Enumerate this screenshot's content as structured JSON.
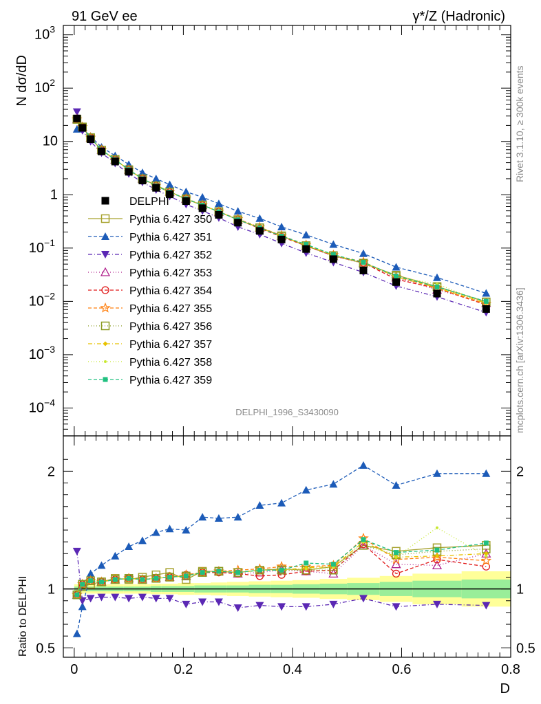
{
  "header": {
    "left": "91 GeV ee",
    "right": "γ*/Z (Hadronic)"
  },
  "side_labels": {
    "rivet": "Rivet 3.1.10, ≥ 300k events",
    "mcplots": "mcplots.cern.ch [arXiv:1306.3436]"
  },
  "watermark": "DELPHI_1996_S3430090",
  "colors": {
    "data": "#000000",
    "ref_band_inner": "#99ee99",
    "ref_band_outer": "#ffff99"
  },
  "chart_data": [
    {
      "type": "scatter",
      "panel": "main",
      "ylabel": "N dσ/dD",
      "yscale": "log",
      "ylim": [
        3e-05,
        1500
      ],
      "xlim": [
        -0.02,
        0.8
      ],
      "y_tick_labels": [
        "10^-4",
        "10^-3",
        "10^-2",
        "10^-1",
        "1",
        "10",
        "10^2",
        "10^3"
      ],
      "x": [
        0.005,
        0.015,
        0.03,
        0.05,
        0.075,
        0.1,
        0.125,
        0.15,
        0.175,
        0.205,
        0.235,
        0.265,
        0.3,
        0.34,
        0.38,
        0.425,
        0.475,
        0.53,
        0.59,
        0.665,
        0.755
      ],
      "series": [
        {
          "name": "DELPHI",
          "label": "DELPHI",
          "color": "#000000",
          "marker": "square-filled",
          "dash": "",
          "values": [
            27.0,
            18.0,
            11.0,
            6.5,
            4.2,
            2.7,
            1.85,
            1.35,
            1.02,
            0.76,
            0.56,
            0.42,
            0.3,
            0.21,
            0.145,
            0.096,
            0.062,
            0.038,
            0.023,
            0.014,
            0.0072
          ]
        },
        {
          "name": "Pythia 6.427 350",
          "label": "Pythia 6.427 350",
          "color": "#a7a22f",
          "marker": "square-open",
          "dash": "",
          "values": [
            26.0,
            18.5,
            11.5,
            6.9,
            4.6,
            2.9,
            2.0,
            1.5,
            1.15,
            0.82,
            0.64,
            0.48,
            0.34,
            0.24,
            0.17,
            0.11,
            0.072,
            0.052,
            0.031,
            0.019,
            0.0098
          ]
        },
        {
          "name": "Pythia 6.427 351",
          "label": "Pythia 6.427 351",
          "color": "#1c5bb8",
          "marker": "triangle-up-filled",
          "dash": "5,3",
          "values": [
            17.0,
            17.5,
            12.5,
            7.8,
            5.4,
            3.7,
            2.6,
            2.0,
            1.55,
            1.14,
            0.9,
            0.68,
            0.49,
            0.36,
            0.25,
            0.177,
            0.117,
            0.079,
            0.044,
            0.028,
            0.0142
          ]
        },
        {
          "name": "Pythia 6.427 352",
          "label": "Pythia 6.427 352",
          "color": "#5b28b4",
          "marker": "triangle-down-filled",
          "dash": "6,3,1,3",
          "values": [
            36.0,
            16.0,
            10.0,
            6.1,
            3.9,
            2.48,
            1.72,
            1.24,
            0.94,
            0.66,
            0.5,
            0.37,
            0.25,
            0.18,
            0.123,
            0.081,
            0.054,
            0.035,
            0.0195,
            0.0122,
            0.0062
          ]
        },
        {
          "name": "Pythia 6.427 353",
          "label": "Pythia 6.427 353",
          "color": "#b0208c",
          "marker": "triangle-up-open",
          "dash": "1,3",
          "values": [
            26.0,
            18.7,
            11.8,
            6.9,
            4.55,
            2.95,
            2.0,
            1.47,
            1.12,
            0.84,
            0.64,
            0.48,
            0.34,
            0.24,
            0.168,
            0.11,
            0.07,
            0.052,
            0.028,
            0.0165,
            0.0093
          ]
        },
        {
          "name": "Pythia 6.427 354",
          "label": "Pythia 6.427 354",
          "color": "#e01818",
          "marker": "circle-open",
          "dash": "5,3",
          "values": [
            26.0,
            18.7,
            11.8,
            6.9,
            4.55,
            2.95,
            2.0,
            1.47,
            1.12,
            0.85,
            0.64,
            0.48,
            0.34,
            0.233,
            0.163,
            0.11,
            0.072,
            0.053,
            0.026,
            0.0175,
            0.0086
          ]
        },
        {
          "name": "Pythia 6.427 355",
          "label": "Pythia 6.427 355",
          "color": "#ff7f0e",
          "marker": "star-open",
          "dash": "5,3",
          "values": [
            26.0,
            18.7,
            11.8,
            6.9,
            4.55,
            2.95,
            2.0,
            1.47,
            1.12,
            0.85,
            0.64,
            0.48,
            0.35,
            0.246,
            0.172,
            0.114,
            0.074,
            0.055,
            0.029,
            0.0178,
            0.0089
          ]
        },
        {
          "name": "Pythia 6.427 356",
          "label": "Pythia 6.427 356",
          "color": "#8a9a20",
          "marker": "square-open",
          "dash": "1,3",
          "values": [
            26.0,
            18.7,
            11.8,
            6.9,
            4.55,
            2.95,
            2.0,
            1.47,
            1.12,
            0.84,
            0.64,
            0.48,
            0.34,
            0.24,
            0.167,
            0.111,
            0.072,
            0.052,
            0.03,
            0.0185,
            0.0097
          ]
        },
        {
          "name": "Pythia 6.427 357",
          "label": "Pythia 6.427 357",
          "color": "#e8c200",
          "marker": "diamond-small",
          "dash": "6,3,1,3",
          "values": [
            26.0,
            18.7,
            11.8,
            6.9,
            4.55,
            2.95,
            2.0,
            1.47,
            1.12,
            0.84,
            0.64,
            0.48,
            0.34,
            0.24,
            0.167,
            0.113,
            0.074,
            0.053,
            0.029,
            0.018,
            0.0093
          ]
        },
        {
          "name": "Pythia 6.427 358",
          "label": "Pythia 6.427 358",
          "color": "#c8e830",
          "marker": "dot",
          "dash": "1,3",
          "values": [
            26.0,
            18.7,
            11.8,
            6.9,
            4.55,
            2.95,
            2.0,
            1.47,
            1.12,
            0.84,
            0.64,
            0.48,
            0.34,
            0.24,
            0.167,
            0.112,
            0.073,
            0.053,
            0.029,
            0.0212,
            0.0092
          ]
        },
        {
          "name": "Pythia 6.427 359",
          "label": "Pythia 6.427 359",
          "color": "#20c080",
          "marker": "square-small",
          "dash": "5,3",
          "values": [
            26.0,
            18.7,
            11.8,
            6.9,
            4.55,
            2.95,
            2.0,
            1.47,
            1.12,
            0.84,
            0.64,
            0.48,
            0.34,
            0.24,
            0.168,
            0.117,
            0.075,
            0.054,
            0.03,
            0.0187,
            0.01
          ]
        }
      ]
    },
    {
      "type": "line",
      "panel": "ratio",
      "ylabel": "Ratio to DELPHI",
      "xlabel": "D",
      "ylim": [
        0.42,
        2.3
      ],
      "xlim": [
        -0.02,
        0.8
      ],
      "y_ticks": [
        0.5,
        1,
        2
      ],
      "y_tick_labels": [
        "0.5",
        "1",
        "2"
      ],
      "x_ticks": [
        0,
        0.2,
        0.4,
        0.6,
        0.8
      ],
      "x_tick_labels": [
        "0",
        "0.2",
        "0.4",
        "0.6",
        "0.8"
      ],
      "x": [
        0.005,
        0.015,
        0.03,
        0.05,
        0.075,
        0.1,
        0.125,
        0.15,
        0.175,
        0.205,
        0.235,
        0.265,
        0.3,
        0.34,
        0.38,
        0.425,
        0.475,
        0.53,
        0.59,
        0.665,
        0.755
      ],
      "series": [
        {
          "name": "Pythia 6.427 350",
          "values": [
            0.95,
            1.02,
            1.04,
            1.06,
            1.09,
            1.08,
            1.1,
            1.12,
            1.14,
            1.08,
            1.15,
            1.15,
            1.14,
            1.16,
            1.17,
            1.16,
            1.19,
            1.37,
            1.32,
            1.35,
            1.37
          ]
        },
        {
          "name": "Pythia 6.427 351",
          "values": [
            0.62,
            0.85,
            1.13,
            1.2,
            1.28,
            1.36,
            1.41,
            1.48,
            1.51,
            1.5,
            1.61,
            1.6,
            1.61,
            1.71,
            1.73,
            1.84,
            1.89,
            2.05,
            1.88,
            1.98,
            1.98
          ]
        },
        {
          "name": "Pythia 6.427 352",
          "values": [
            1.32,
            0.9,
            0.92,
            0.93,
            0.93,
            0.92,
            0.93,
            0.92,
            0.92,
            0.87,
            0.89,
            0.89,
            0.84,
            0.86,
            0.85,
            0.85,
            0.87,
            0.92,
            0.85,
            0.87,
            0.86
          ]
        },
        {
          "name": "Pythia 6.427 353",
          "values": [
            0.95,
            1.04,
            1.07,
            1.06,
            1.08,
            1.09,
            1.08,
            1.09,
            1.1,
            1.11,
            1.14,
            1.15,
            1.13,
            1.14,
            1.16,
            1.15,
            1.13,
            1.37,
            1.21,
            1.2,
            1.3
          ]
        },
        {
          "name": "Pythia 6.427 354",
          "values": [
            0.95,
            1.04,
            1.07,
            1.06,
            1.08,
            1.09,
            1.08,
            1.09,
            1.1,
            1.12,
            1.14,
            1.14,
            1.13,
            1.11,
            1.12,
            1.15,
            1.16,
            1.38,
            1.13,
            1.25,
            1.19
          ]
        },
        {
          "name": "Pythia 6.427 355",
          "values": [
            0.95,
            1.04,
            1.07,
            1.06,
            1.08,
            1.09,
            1.08,
            1.09,
            1.1,
            1.12,
            1.14,
            1.15,
            1.16,
            1.17,
            1.19,
            1.19,
            1.2,
            1.43,
            1.25,
            1.27,
            1.24
          ]
        },
        {
          "name": "Pythia 6.427 356",
          "values": [
            0.95,
            1.04,
            1.07,
            1.06,
            1.08,
            1.09,
            1.08,
            1.09,
            1.1,
            1.11,
            1.14,
            1.15,
            1.14,
            1.16,
            1.16,
            1.16,
            1.16,
            1.37,
            1.29,
            1.32,
            1.34
          ]
        },
        {
          "name": "Pythia 6.427 357",
          "values": [
            0.95,
            1.04,
            1.07,
            1.06,
            1.08,
            1.09,
            1.08,
            1.09,
            1.1,
            1.11,
            1.14,
            1.15,
            1.14,
            1.16,
            1.16,
            1.18,
            1.19,
            1.4,
            1.27,
            1.28,
            1.3
          ]
        },
        {
          "name": "Pythia 6.427 358",
          "values": [
            0.95,
            1.04,
            1.07,
            1.06,
            1.08,
            1.09,
            1.08,
            1.09,
            1.1,
            1.11,
            1.14,
            1.15,
            1.14,
            1.16,
            1.16,
            1.17,
            1.18,
            1.4,
            1.27,
            1.52,
            1.28
          ]
        },
        {
          "name": "Pythia 6.427 359",
          "values": [
            0.95,
            1.04,
            1.07,
            1.06,
            1.08,
            1.09,
            1.08,
            1.09,
            1.1,
            1.11,
            1.14,
            1.15,
            1.14,
            1.16,
            1.16,
            1.22,
            1.21,
            1.42,
            1.31,
            1.33,
            1.39
          ]
        }
      ],
      "reference_band": {
        "x_edges": [
          0.0,
          0.01,
          0.02,
          0.04,
          0.06,
          0.09,
          0.11,
          0.14,
          0.16,
          0.19,
          0.22,
          0.25,
          0.28,
          0.32,
          0.36,
          0.4,
          0.45,
          0.5,
          0.56,
          0.62,
          0.71,
          0.8
        ],
        "inner_halfwidth": [
          0.02,
          0.02,
          0.02,
          0.02,
          0.02,
          0.02,
          0.02,
          0.025,
          0.025,
          0.025,
          0.03,
          0.03,
          0.03,
          0.035,
          0.035,
          0.04,
          0.045,
          0.05,
          0.06,
          0.07,
          0.08
        ],
        "outer_halfwidth": [
          0.04,
          0.04,
          0.04,
          0.04,
          0.04,
          0.04,
          0.04,
          0.045,
          0.045,
          0.05,
          0.05,
          0.055,
          0.06,
          0.065,
          0.07,
          0.075,
          0.085,
          0.095,
          0.11,
          0.13,
          0.15
        ]
      }
    }
  ]
}
